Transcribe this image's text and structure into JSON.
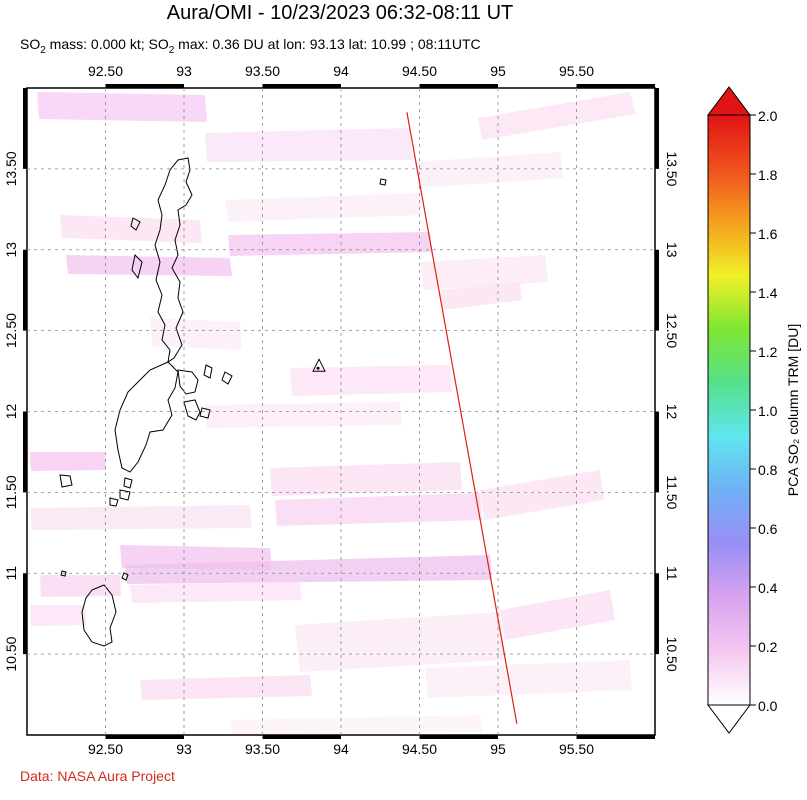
{
  "title": "Aura/OMI - 10/23/2023 06:32-08:11 UT",
  "subtitle": {
    "p1": "SO",
    "p1_sub": "2",
    "p2": " mass: 0.000 kt; SO",
    "p2_sub": "2",
    "p3": " max: 0.36 DU at lon: 93.13 lat: 10.99 ; 08:11UTC"
  },
  "credit": "Data: NASA Aura Project",
  "map": {
    "lon_range": [
      92.0,
      96.0
    ],
    "lat_range": [
      10.0,
      14.0
    ],
    "lon_ticks": [
      "92.50",
      "93",
      "93.50",
      "94",
      "94.50",
      "95",
      "95.50"
    ],
    "lon_tick_values": [
      92.5,
      93.0,
      93.5,
      94.0,
      94.5,
      95.0,
      95.5
    ],
    "lat_ticks": [
      "10.50",
      "11",
      "11.50",
      "12",
      "12.50",
      "13",
      "13.50"
    ],
    "lat_tick_values": [
      10.5,
      11.0,
      11.5,
      12.0,
      12.5,
      13.0,
      13.5
    ],
    "orbit_track": {
      "start": [
        94.42,
        13.85
      ],
      "end": [
        95.12,
        10.07
      ],
      "color": "#dd2211"
    },
    "volcano_marker": {
      "lon": 93.86,
      "lat": 12.28,
      "shape": "triangle-icon"
    }
  },
  "colorbar": {
    "label": "PCA SO₂ column TRM [DU]",
    "min": 0.0,
    "max": 2.0,
    "ticks": [
      "0.0",
      "0.2",
      "0.4",
      "0.6",
      "0.8",
      "1.0",
      "1.2",
      "1.4",
      "1.6",
      "1.8",
      "2.0"
    ],
    "colors": [
      "#ffffff",
      "#f5c8f0",
      "#d9a3f0",
      "#9a8ef5",
      "#6fb0f5",
      "#5fe6f0",
      "#55e08c",
      "#7ee633",
      "#f0f028",
      "#f5a01e",
      "#f0501e",
      "#e01414"
    ]
  }
}
